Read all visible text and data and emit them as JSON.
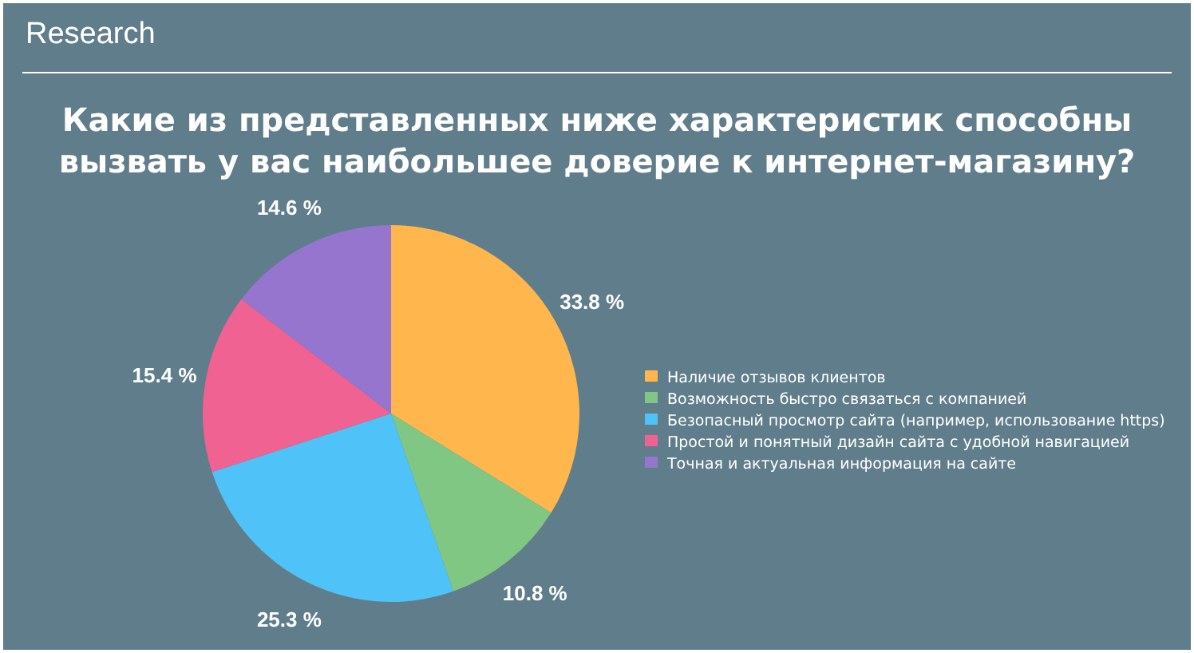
{
  "chart_data": {
    "type": "pie",
    "subtitle": "Research",
    "title": "Какие из представленных ниже характеристик способны вызвать у вас наибольшее доверие к интернет-магазину?",
    "categories": [
      "Наличие отзывов клиентов",
      "Возможность быстро связаться с компанией",
      "Безопасный просмотр сайта (например, использование https)",
      "Простой и понятный дизайн сайта с удобной навигацией",
      "Точная и актуальная информация на сайте"
    ],
    "values": [
      33.8,
      10.8,
      25.3,
      15.4,
      14.6
    ],
    "value_labels": [
      "33.8 %",
      "10.8 %",
      "25.3 %",
      "15.4 %",
      "14.6 %"
    ],
    "colors": [
      "#ffb74d",
      "#81c784",
      "#4fc3f7",
      "#f06292",
      "#9575cd"
    ],
    "legend": "right"
  }
}
